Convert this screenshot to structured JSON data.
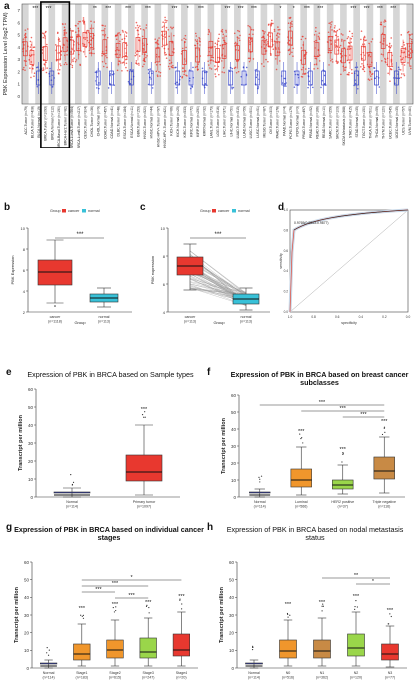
{
  "panels": {
    "a": {
      "label": "a",
      "ylabel": "PBK Expression Level (log2 TPM)",
      "yticks": [
        "0",
        "1",
        "2",
        "3",
        "4",
        "5",
        "6",
        "7"
      ],
      "categories": [
        "ACC.Tumor (n=79)",
        "BLCA.Tumor (n=408)",
        "BLCA.Normal (n=19)",
        "BRCA.Tumor (n=1093)",
        "BRCA.Normal (n=112)",
        "BRCA-Basal.Tumor (n=190)",
        "BRCA-Her2.Tumor (n=82)",
        "BRCA-LumA.Tumor (n=564)",
        "BRCA-LumB.Tumor (n=217)",
        "CESC.Tumor (n=304)",
        "CHOL.Tumor (n=36)",
        "CHOL.Normal (n=9)",
        "COAD.Tumor (n=457)",
        "COAD.Normal (n=41)",
        "DLBC.Tumor (n=48)",
        "ESCA.Tumor (n=184)",
        "ESCA.Normal (n=11)",
        "GBM.Tumor (n=153)",
        "HNSC.Tumor (n=520)",
        "HNSC.Normal (n=44)",
        "HNSC-HPV+.Tumor (n=97)",
        "HNSC-HPV-.Tumor (n=421)",
        "KICH.Tumor (n=66)",
        "KICH.Normal (n=25)",
        "KIRC.Tumor (n=533)",
        "KIRC.Normal (n=72)",
        "KIRP.Tumor (n=290)",
        "KIRP.Normal (n=32)",
        "LAML.Tumor (n=173)",
        "LGG.Tumor (n=516)",
        "LIHC.Tumor (n=371)",
        "LIHC.Normal (n=50)",
        "LUAD.Tumor (n=515)",
        "LUAD.Normal (n=59)",
        "LUSC.Tumor (n=501)",
        "LUSC.Normal (n=51)",
        "MESO.Tumor (n=87)",
        "OV.Tumor (n=303)",
        "PAAD.Tumor (n=178)",
        "PAAD.Normal (n=4)",
        "PCPG.Tumor (n=179)",
        "PCPG.Normal (n=3)",
        "PRAD.Tumor (n=497)",
        "PRAD.Normal (n=52)",
        "READ.Tumor (n=166)",
        "READ.Normal (n=10)",
        "SARC.Tumor (n=259)",
        "SKCM.Tumor (n=103)",
        "SKCM.Metastasis (n=368)",
        "STAD.Tumor (n=415)",
        "STAD.Normal (n=35)",
        "TGCT.Tumor (n=150)",
        "THCA.Tumor (n=501)",
        "THCA.Normal (n=59)",
        "THYM.Tumor (n=120)",
        "UCEC.Tumor (n=545)",
        "UCEC.Normal (n=35)",
        "UCS.Tumor (n=57)",
        "UVM.Tumor (n=80)"
      ],
      "stars": [
        "",
        "***",
        "",
        "***",
        "",
        "",
        "",
        "",
        "",
        "",
        "**",
        "",
        "***",
        "",
        "",
        "***",
        "",
        "",
        "***",
        "",
        "",
        "",
        "***",
        "",
        "*",
        "",
        "***",
        "",
        "",
        "",
        "***",
        "",
        "***",
        "",
        "***",
        "",
        "",
        "",
        "*",
        "",
        "*",
        "",
        "***",
        "",
        "***",
        "",
        "",
        "",
        "",
        "***",
        "",
        "***",
        "",
        "***",
        "",
        "***",
        "",
        "",
        ""
      ]
    },
    "b": {
      "label": "b",
      "legend_title": "Group",
      "legend_items": [
        "cancer",
        "normal"
      ],
      "ylabel": "PBK Expression",
      "xlabel": "Group",
      "yticks": [
        "2",
        "4",
        "6",
        "8",
        "10"
      ],
      "categories": [
        "cancer\n(n=1118)",
        "normal\n(n=113)"
      ],
      "sig": "***"
    },
    "c": {
      "label": "c",
      "legend_title": "Group",
      "legend_items": [
        "cancer",
        "normal"
      ],
      "ylabel": "PBK expression",
      "xlabel": "Group",
      "yticks": [
        "4",
        "6",
        "8",
        "10"
      ],
      "categories": [
        "cancer\n(n=113)",
        "normal\n(n=113)"
      ],
      "sig": "***"
    },
    "d": {
      "label": "d",
      "annotation": "0.9765(0.9853-0.9877)",
      "ylabel": "sensitivity",
      "xlabel": "specificity",
      "xticks": [
        "1.0",
        "0.8",
        "0.6",
        "0.4",
        "0.2",
        "0.0"
      ],
      "yticks": [
        "0.0",
        "0.2",
        "0.4",
        "0.6",
        "0.8",
        "1.0"
      ]
    },
    "e": {
      "label": "e",
      "title": "Expression of PBK in BRCA based on Sample types",
      "ylabel": "Transcript per million",
      "xlabel": "TCGA samples",
      "yticks": [
        "0",
        "10",
        "20",
        "30",
        "40",
        "50",
        "60"
      ],
      "categories": [
        "Normal\n(n=114)",
        "Primary tumor\n(n=1097)"
      ],
      "sig": [
        "",
        "***"
      ]
    },
    "f": {
      "label": "f",
      "title": "Expression of PBK in BRCA based on breast cancer subclasses",
      "ylabel": "Transcript per million",
      "xlabel": "TCGA samples",
      "yticks": [
        "0",
        "10",
        "20",
        "30",
        "40",
        "50",
        "60"
      ],
      "categories": [
        "Normal\n(n=114)",
        "Luminal\n(n=566)",
        "HER2 positive\n(n=37)",
        "Triple negative\n(n=116)"
      ],
      "sig": [
        "",
        "***",
        "***",
        "***"
      ],
      "brackets": [
        "***",
        "***",
        "***"
      ]
    },
    "g": {
      "label": "g",
      "title": "Expression of PBK in BRCA based on individual cancer stages",
      "ylabel": "Transcript per million",
      "xlabel": "TCGA samples",
      "yticks": [
        "0",
        "10",
        "20",
        "30",
        "40",
        "50",
        "60"
      ],
      "categories": [
        "Normal\n(n=114)",
        "Stage1\n(n=183)",
        "Stage2\n(n=615)",
        "Stage3\n(n=247)",
        "Stage4\n(n=20)"
      ],
      "sig": [
        "",
        "***",
        "***",
        "***",
        "***"
      ],
      "brackets": [
        "*",
        "***",
        "***",
        "***"
      ]
    },
    "h": {
      "label": "h",
      "title": "Expression of PBK in BRCA based on nodal metastasis status",
      "ylabel": "Transcript per million",
      "xlabel": "TCGA samples",
      "yticks": [
        "0",
        "10",
        "20",
        "30",
        "40",
        "50",
        "60"
      ],
      "categories": [
        "Normal\n(n=114)",
        "N0\n(n=516)",
        "N1\n(n=362)",
        "N2\n(n=120)",
        "N3\n(n=77)"
      ],
      "sig": [
        "",
        "***",
        "***",
        "***",
        "***"
      ],
      "brackets": [
        "**",
        "*"
      ]
    }
  },
  "colors": {
    "tumor": "#e8382f",
    "normal": "#3240c8",
    "bg_alt": "#d6d6d6",
    "teal": "#38c1d8",
    "orange": "#f0962c",
    "green": "#9ad64a",
    "brown": "#c88a45"
  }
}
